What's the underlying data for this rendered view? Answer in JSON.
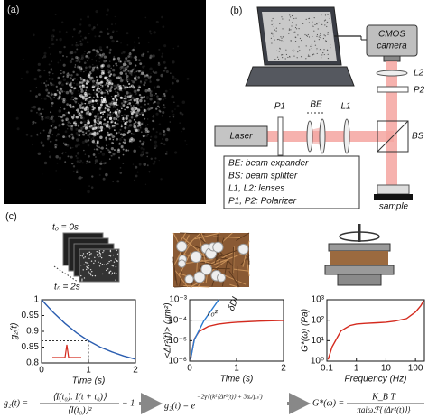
{
  "panels": {
    "a": "(a)",
    "b": "(b)",
    "c": "(c)"
  },
  "setup": {
    "camera": [
      "CMOS",
      "camera"
    ],
    "L2": "L2",
    "P2": "P2",
    "BS": "BS",
    "laser": "Laser",
    "P1": "P1",
    "BE": "BE",
    "L1": "L1",
    "sample": "sample",
    "legend": [
      "BE: beam expander",
      "BS: beam splitter",
      "L1, L2: lenses",
      "P1, P2: Polarizer"
    ]
  },
  "frames": {
    "first": "t₀ = 0s",
    "last": "tₙ = 2s"
  },
  "chart_data": [
    {
      "type": "line",
      "ylabel": "g₂(t)",
      "xlabel": "Time (s)",
      "xlim": [
        0,
        2
      ],
      "ylim": [
        0.8,
        1
      ],
      "xticks": [
        0,
        1,
        2
      ],
      "yticks": [
        0.8,
        0.85,
        0.9,
        0.95,
        1
      ],
      "series": [
        {
          "color": "#2a5db0",
          "x": [
            0,
            0.25,
            0.5,
            0.75,
            1,
            1.25,
            1.5,
            1.75,
            2
          ],
          "values": [
            1,
            0.96,
            0.925,
            0.895,
            0.87,
            0.85,
            0.835,
            0.822,
            0.812
          ]
        }
      ]
    },
    {
      "type": "line",
      "ylabel": "<Δr²(t)> (μm²)",
      "xlabel": "Time (s)",
      "ylog": true,
      "xlim": [
        0,
        2
      ],
      "ylim": [
        1e-06,
        0.001
      ],
      "xticks": [
        0,
        1,
        2
      ],
      "yticks": [
        {
          "value": 1e-06,
          "label": "10⁻⁶"
        },
        {
          "value": 1e-05,
          "label": "10⁻⁵"
        },
        {
          "value": 0.0001,
          "label": "10⁻⁴"
        },
        {
          "value": 0.001,
          "label": "10⁻³"
        }
      ],
      "reference_line": 0.0001,
      "annotations": [
        "r₀²",
        "δDI"
      ],
      "series": [
        {
          "color": "#d42a1e",
          "x": [
            0.02,
            0.1,
            0.2,
            0.4,
            0.6,
            0.8,
            1,
            1.5,
            2
          ],
          "values": [
            1.2e-06,
            1.2e-05,
            2.8e-05,
            5e-05,
            6.4e-05,
            7.3e-05,
            8e-05,
            9e-05,
            9.75e-05
          ]
        },
        {
          "color": "#2a7ad0",
          "x": [
            0.02,
            0.1,
            0.3,
            0.62
          ],
          "values": [
            1.2e-06,
            1.1e-05,
            9e-05,
            0.001
          ]
        }
      ]
    },
    {
      "type": "line",
      "ylabel": "G*(ω) (Pa)",
      "xlabel": "Frequency (Hz)",
      "xlog": true,
      "ylog": true,
      "xlim": [
        0.1,
        200
      ],
      "ylim": [
        1,
        1000
      ],
      "xticks": [
        0.1,
        1,
        10,
        100
      ],
      "yticks": [
        {
          "value": 1,
          "label": "10⁰"
        },
        {
          "value": 10,
          "label": "10¹"
        },
        {
          "value": 100,
          "label": "10²"
        },
        {
          "value": 1000,
          "label": "10³"
        }
      ],
      "series": [
        {
          "color": "#d42a1e",
          "x": [
            0.11,
            0.15,
            0.3,
            0.6,
            1,
            2,
            5,
            10,
            20,
            50,
            100,
            150,
            190
          ],
          "values": [
            1.2,
            5,
            30,
            55,
            65,
            70,
            75,
            80,
            90,
            120,
            250,
            500,
            900
          ]
        }
      ]
    }
  ],
  "equations": {
    "eq1": {
      "lhs": "g₂(t) =",
      "num": "⟨I(t₀). I(t + t₀)⟩",
      "den": "⟨I(t₀)⟩²",
      "tail": "− 1"
    },
    "eq2": {
      "lhs": "g₂(t) = e",
      "exp": "−2γ√(k²⟨Δr²(t)⟩ + 3μₐ/μₛ′)"
    },
    "eq3": {
      "lhs": "G*(ω) =",
      "num": "K_B T",
      "den": "πaiωℱ{⟨Δr²(t)⟩}"
    }
  }
}
